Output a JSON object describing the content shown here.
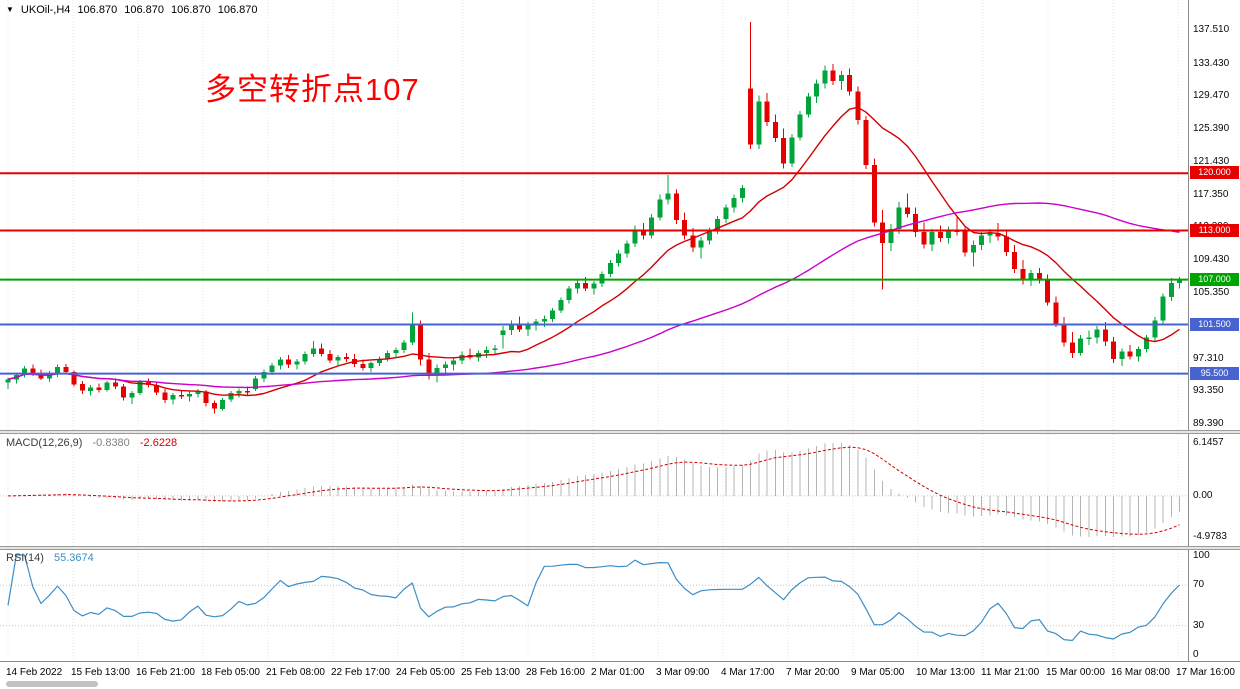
{
  "header": {
    "expander_icon": "▼",
    "symbol_period": "UKOil-,H4",
    "ohlc": [
      "106.870",
      "106.870",
      "106.870",
      "106.870"
    ]
  },
  "annotation": {
    "text": "多空转折点107",
    "color": "#ff0000"
  },
  "colors": {
    "bull": "#00a43b",
    "bear": "#e60000",
    "grid": "#e7e7e7",
    "ma_fast": "#d40000",
    "ma_slow": "#cc00cc",
    "macd_hist": "#b4b4b4",
    "macd_signal": "#d40000",
    "rsi_line": "#3b8ec8",
    "axis_text": "#0a0a0a"
  },
  "chart_data": {
    "type": "candlestick",
    "title": "UKOil-,H4",
    "symbol": "UKOil-",
    "timeframe": "H4",
    "current_ohlc": [
      106.87,
      106.87,
      106.87,
      106.87
    ],
    "price_axis": {
      "top_price": 141.2,
      "bottom_price": 88.6,
      "tick_labels": [
        "137.510",
        "133.430",
        "129.470",
        "125.390",
        "121.430",
        "117.350",
        "113.390",
        "109.430",
        "105.350",
        "101.390",
        "97.310",
        "93.350",
        "89.390"
      ]
    },
    "time_labels": [
      "14 Feb 2022",
      "15 Feb 13:00",
      "16 Feb 21:00",
      "18 Feb 05:00",
      "21 Feb 08:00",
      "22 Feb 17:00",
      "24 Feb 05:00",
      "25 Feb 13:00",
      "28 Feb 16:00",
      "2 Mar 01:00",
      "3 Mar 09:00",
      "4 Mar 17:00",
      "7 Mar 20:00",
      "9 Mar 05:00",
      "10 Mar 13:00",
      "11 Mar 21:00",
      "15 Mar 00:00",
      "16 Mar 08:00",
      "17 Mar 16:00"
    ],
    "horizontal_lines": [
      {
        "price": 120.0,
        "label": "120.000",
        "color": "#e60000"
      },
      {
        "price": 113.0,
        "label": "113.000",
        "color": "#e60000"
      },
      {
        "price": 107.0,
        "label": "107.000",
        "color": "#00a400"
      },
      {
        "price": 101.5,
        "label": "101.500",
        "color": "#4663d0"
      },
      {
        "price": 95.5,
        "label": "95.500",
        "color": "#4663d0"
      }
    ],
    "moving_averages": [
      {
        "name": "ma-fast",
        "period": 13,
        "color": "#d40000"
      },
      {
        "name": "ma-slow",
        "period": 55,
        "color": "#cc00cc"
      }
    ],
    "indicators": {
      "macd": {
        "label": "MACD(12,26,9)",
        "params": [
          12,
          26,
          9
        ],
        "value_main": "-0.8380",
        "value_signal": "-2.6228",
        "axis_labels": [
          "6.1457",
          "0.00",
          "-4.9783"
        ],
        "histogram_color": "#b4b4b4",
        "signal_color": "#d40000"
      },
      "rsi": {
        "label": "RSI(14)",
        "period": 14,
        "value": "55.3674",
        "axis_labels": [
          "100",
          "70",
          "30",
          "0"
        ],
        "levels": [
          70,
          30
        ],
        "line_color": "#3b8ec8"
      }
    },
    "candles": [
      [
        94.4,
        95.0,
        93.6,
        94.8
      ],
      [
        94.8,
        95.6,
        94.3,
        95.3
      ],
      [
        95.3,
        96.4,
        95.0,
        96.1
      ],
      [
        96.1,
        96.6,
        95.2,
        95.5
      ],
      [
        95.5,
        96.0,
        94.7,
        94.9
      ],
      [
        94.9,
        95.8,
        94.5,
        95.4
      ],
      [
        95.4,
        96.6,
        95.1,
        96.3
      ],
      [
        96.3,
        96.7,
        95.4,
        95.7
      ],
      [
        95.7,
        95.9,
        93.9,
        94.2
      ],
      [
        94.2,
        94.6,
        93.0,
        93.4
      ],
      [
        93.4,
        94.1,
        92.8,
        93.8
      ],
      [
        93.8,
        94.3,
        93.2,
        93.5
      ],
      [
        93.5,
        94.6,
        93.3,
        94.4
      ],
      [
        94.4,
        94.9,
        93.6,
        93.9
      ],
      [
        93.9,
        94.2,
        92.2,
        92.6
      ],
      [
        92.6,
        93.4,
        91.8,
        93.1
      ],
      [
        93.1,
        94.7,
        92.9,
        94.5
      ],
      [
        94.5,
        94.9,
        93.8,
        94.1
      ],
      [
        94.1,
        94.4,
        92.9,
        93.2
      ],
      [
        93.2,
        93.6,
        91.9,
        92.3
      ],
      [
        92.3,
        93.1,
        91.7,
        92.9
      ],
      [
        92.9,
        93.5,
        92.4,
        92.7
      ],
      [
        92.7,
        93.3,
        92.1,
        93.0
      ],
      [
        93.0,
        93.6,
        92.6,
        93.3
      ],
      [
        93.3,
        93.5,
        91.5,
        91.9
      ],
      [
        91.9,
        92.2,
        90.6,
        91.2
      ],
      [
        91.2,
        92.5,
        91.0,
        92.3
      ],
      [
        92.3,
        93.4,
        92.0,
        93.1
      ],
      [
        93.1,
        93.7,
        92.6,
        93.4
      ],
      [
        93.4,
        93.9,
        92.9,
        93.2
      ],
      [
        93.6,
        95.2,
        93.4,
        94.9
      ],
      [
        94.9,
        96.0,
        94.5,
        95.7
      ],
      [
        95.7,
        96.8,
        95.3,
        96.5
      ],
      [
        96.5,
        97.5,
        96.0,
        97.2
      ],
      [
        97.2,
        97.8,
        96.2,
        96.6
      ],
      [
        96.6,
        97.3,
        96.0,
        97.0
      ],
      [
        97.0,
        98.2,
        96.6,
        97.9
      ],
      [
        97.9,
        99.5,
        97.5,
        98.6
      ],
      [
        98.6,
        99.2,
        97.6,
        97.9
      ],
      [
        97.9,
        98.4,
        96.8,
        97.1
      ],
      [
        97.1,
        97.8,
        96.5,
        97.5
      ],
      [
        97.5,
        98.0,
        96.9,
        97.3
      ],
      [
        97.3,
        97.9,
        96.3,
        96.7
      ],
      [
        96.7,
        97.2,
        95.9,
        96.2
      ],
      [
        96.2,
        97.0,
        95.7,
        96.8
      ],
      [
        96.8,
        97.6,
        96.4,
        97.3
      ],
      [
        97.3,
        98.3,
        97.0,
        98.0
      ],
      [
        98.0,
        98.7,
        97.5,
        98.4
      ],
      [
        98.4,
        99.6,
        98.0,
        99.3
      ],
      [
        99.3,
        103.0,
        99.0,
        101.5
      ],
      [
        101.5,
        102.0,
        96.5,
        97.2
      ],
      [
        97.2,
        98.0,
        94.8,
        95.3
      ],
      [
        95.3,
        96.6,
        94.4,
        96.2
      ],
      [
        96.2,
        97.0,
        95.6,
        96.6
      ],
      [
        96.6,
        97.4,
        95.9,
        97.1
      ],
      [
        97.1,
        98.2,
        96.7,
        97.8
      ],
      [
        97.8,
        98.6,
        97.2,
        97.5
      ],
      [
        97.5,
        98.3,
        97.0,
        98.0
      ],
      [
        98.0,
        98.8,
        97.4,
        98.4
      ],
      [
        98.4,
        99.0,
        97.9,
        98.6
      ],
      [
        100.2,
        101.3,
        98.6,
        100.8
      ],
      [
        100.8,
        102.0,
        100.2,
        101.6
      ],
      [
        101.6,
        102.5,
        100.6,
        100.9
      ],
      [
        100.9,
        101.8,
        100.1,
        101.4
      ],
      [
        101.4,
        102.2,
        100.8,
        101.9
      ],
      [
        101.9,
        102.6,
        101.2,
        102.2
      ],
      [
        102.2,
        103.5,
        101.8,
        103.2
      ],
      [
        103.2,
        104.8,
        102.9,
        104.5
      ],
      [
        104.5,
        106.2,
        104.1,
        105.9
      ],
      [
        105.9,
        107.0,
        105.3,
        106.6
      ],
      [
        106.6,
        107.3,
        105.6,
        105.9
      ],
      [
        105.9,
        106.8,
        105.2,
        106.5
      ],
      [
        106.5,
        108.0,
        106.1,
        107.7
      ],
      [
        107.7,
        109.4,
        107.3,
        109.0
      ],
      [
        109.0,
        110.6,
        108.6,
        110.2
      ],
      [
        110.2,
        111.8,
        109.7,
        111.4
      ],
      [
        111.4,
        113.6,
        111.0,
        113.0
      ],
      [
        113.0,
        113.9,
        111.9,
        112.4
      ],
      [
        112.4,
        115.0,
        112.0,
        114.6
      ],
      [
        114.6,
        117.4,
        114.2,
        116.8
      ],
      [
        116.8,
        119.8,
        116.2,
        117.5
      ],
      [
        117.5,
        118.0,
        113.8,
        114.3
      ],
      [
        114.3,
        115.2,
        111.9,
        112.4
      ],
      [
        112.4,
        113.3,
        110.4,
        110.9
      ],
      [
        110.9,
        112.2,
        109.6,
        111.8
      ],
      [
        111.8,
        113.4,
        111.3,
        113.0
      ],
      [
        113.0,
        114.8,
        112.6,
        114.4
      ],
      [
        114.4,
        116.2,
        113.9,
        115.8
      ],
      [
        115.8,
        117.4,
        115.2,
        117.0
      ],
      [
        117.0,
        118.6,
        116.4,
        118.2
      ],
      [
        130.4,
        138.5,
        123.0,
        123.5
      ],
      [
        123.5,
        129.5,
        123.0,
        128.8
      ],
      [
        128.8,
        129.8,
        125.8,
        126.3
      ],
      [
        126.3,
        127.2,
        123.8,
        124.3
      ],
      [
        124.3,
        125.5,
        120.6,
        121.2
      ],
      [
        121.2,
        124.8,
        120.8,
        124.4
      ],
      [
        124.4,
        127.6,
        124.0,
        127.2
      ],
      [
        127.2,
        129.8,
        126.8,
        129.4
      ],
      [
        129.4,
        131.5,
        128.6,
        131.0
      ],
      [
        131.0,
        133.2,
        130.4,
        132.6
      ],
      [
        132.6,
        133.4,
        130.8,
        131.3
      ],
      [
        131.3,
        132.5,
        130.2,
        132.0
      ],
      [
        132.0,
        132.8,
        129.5,
        130.0
      ],
      [
        130.0,
        130.6,
        126.0,
        126.5
      ],
      [
        126.5,
        127.0,
        120.5,
        121.0
      ],
      [
        121.0,
        121.8,
        113.5,
        114.0
      ],
      [
        114.0,
        115.5,
        105.8,
        111.5
      ],
      [
        111.5,
        113.8,
        110.5,
        113.2
      ],
      [
        113.2,
        116.5,
        112.6,
        115.8
      ],
      [
        115.8,
        117.5,
        114.6,
        115.0
      ],
      [
        115.0,
        115.8,
        112.2,
        112.8
      ],
      [
        112.8,
        114.0,
        110.8,
        111.3
      ],
      [
        111.3,
        113.2,
        110.5,
        112.8
      ],
      [
        112.8,
        113.6,
        111.6,
        112.1
      ],
      [
        112.1,
        113.5,
        111.4,
        113.0
      ],
      [
        113.0,
        114.6,
        112.4,
        112.9
      ],
      [
        112.9,
        113.4,
        109.8,
        110.3
      ],
      [
        110.3,
        111.8,
        108.6,
        111.2
      ],
      [
        111.2,
        112.8,
        110.6,
        112.4
      ],
      [
        112.4,
        113.2,
        111.5,
        112.7
      ],
      [
        112.7,
        113.9,
        111.8,
        112.3
      ],
      [
        112.3,
        112.9,
        109.9,
        110.4
      ],
      [
        110.4,
        111.2,
        107.8,
        108.3
      ],
      [
        108.3,
        109.4,
        106.4,
        106.9
      ],
      [
        106.9,
        108.2,
        106.2,
        107.8
      ],
      [
        107.8,
        108.4,
        106.5,
        106.9
      ],
      [
        106.9,
        107.6,
        103.8,
        104.2
      ],
      [
        104.2,
        104.9,
        101.2,
        101.6
      ],
      [
        101.6,
        102.4,
        98.8,
        99.3
      ],
      [
        99.3,
        100.6,
        97.4,
        98.0
      ],
      [
        98.0,
        100.2,
        97.7,
        99.8
      ],
      [
        99.8,
        100.8,
        99.0,
        99.9
      ],
      [
        99.9,
        101.3,
        99.2,
        100.9
      ],
      [
        100.9,
        101.8,
        98.9,
        99.4
      ],
      [
        99.4,
        100.0,
        96.8,
        97.3
      ],
      [
        97.3,
        98.6,
        96.4,
        98.2
      ],
      [
        98.2,
        99.0,
        97.2,
        97.6
      ],
      [
        97.6,
        98.8,
        97.0,
        98.5
      ],
      [
        98.5,
        100.2,
        98.1,
        99.9
      ],
      [
        99.9,
        102.4,
        99.5,
        102.0
      ],
      [
        102.0,
        105.3,
        101.6,
        104.9
      ],
      [
        104.9,
        107.2,
        104.4,
        106.6
      ],
      [
        106.6,
        107.3,
        105.9,
        106.87
      ]
    ]
  }
}
